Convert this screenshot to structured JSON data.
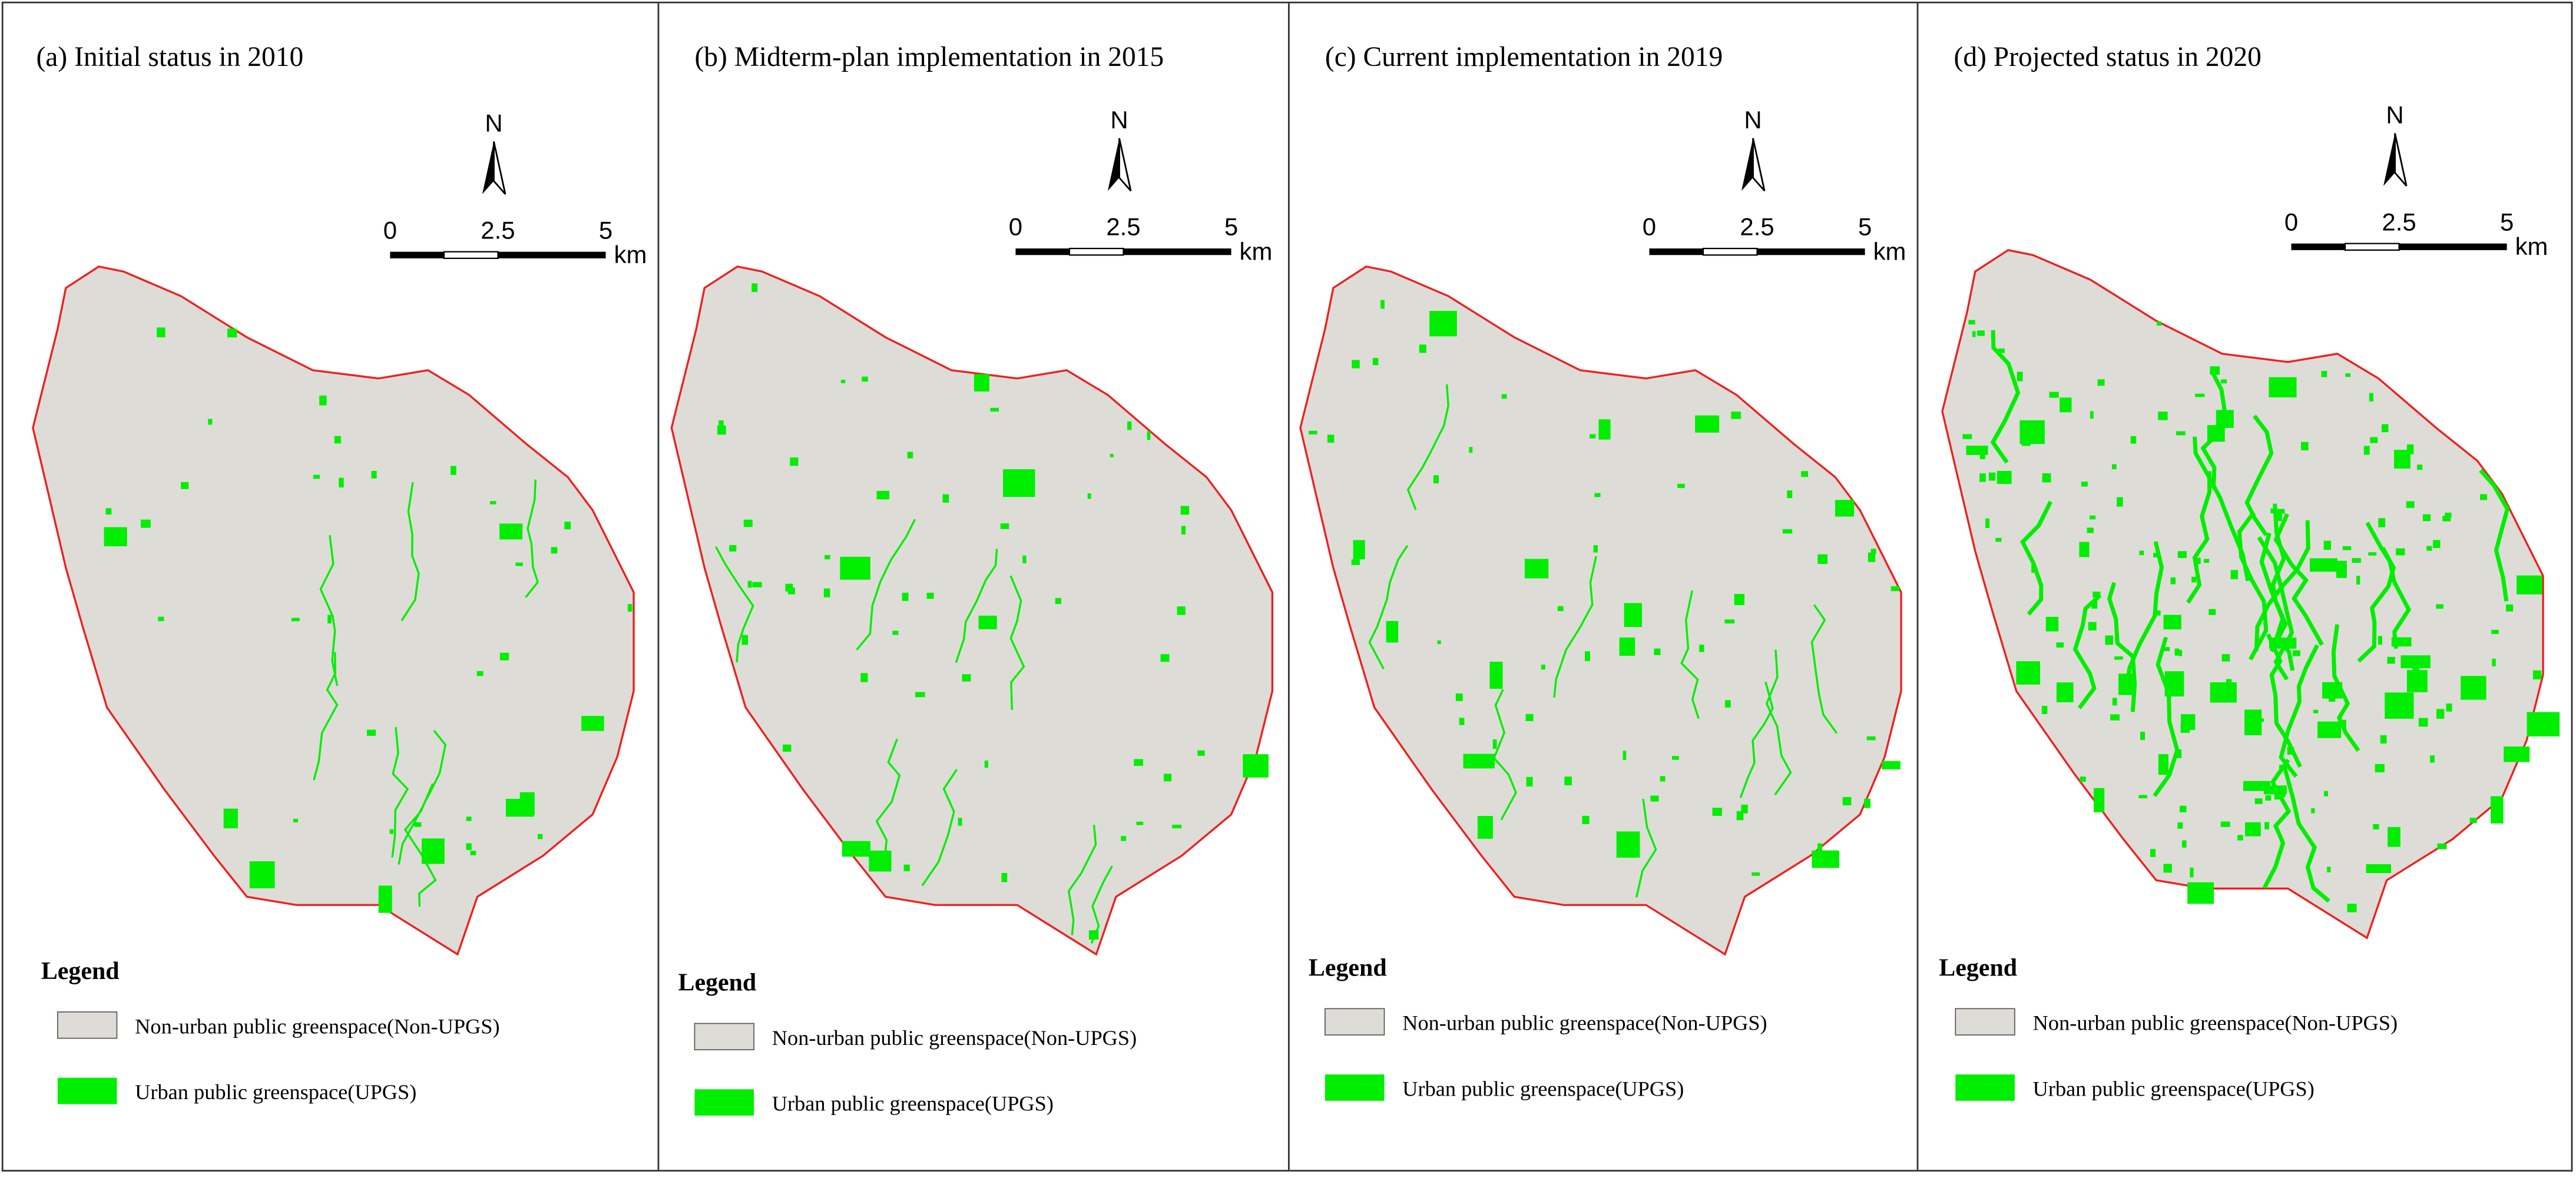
{
  "panels": [
    {
      "title": "(a) Initial status in 2010",
      "north": "N",
      "scale": {
        "labels": [
          "0",
          "2.5",
          "5"
        ],
        "unit": "km"
      },
      "legend": {
        "title": "Legend",
        "items": [
          "Non-urban public greenspace(Non-UPGS)",
          "Urban public greenspace(UPGS)"
        ]
      }
    },
    {
      "title": "(b) Midterm-plan implementation in 2015",
      "north": "N",
      "scale": {
        "labels": [
          "0",
          "2.5",
          "5"
        ],
        "unit": "km"
      },
      "legend": {
        "title": "Legend",
        "items": [
          "Non-urban public greenspace(Non-UPGS)",
          "Urban public greenspace(UPGS)"
        ]
      }
    },
    {
      "title": "(c) Current implementation in 2019",
      "north": "N",
      "scale": {
        "labels": [
          "0",
          "2.5",
          "5"
        ],
        "unit": "km"
      },
      "legend": {
        "title": "Legend",
        "items": [
          "Non-urban public greenspace(Non-UPGS)",
          "Urban public greenspace(UPGS)"
        ]
      }
    },
    {
      "title": "(d) Projected status in 2020",
      "north": "N",
      "scale": {
        "labels": [
          "0",
          "2.5",
          "5"
        ],
        "unit": "km"
      },
      "legend": {
        "title": "Legend",
        "items": [
          "Non-urban public greenspace(Non-UPGS)",
          "Urban public greenspace(UPGS)"
        ]
      }
    }
  ]
}
